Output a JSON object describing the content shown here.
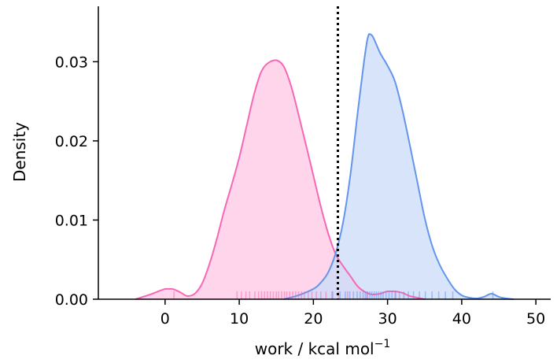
{
  "chart_data": {
    "type": "area",
    "title": "",
    "xlabel_main": "work / kcal mol",
    "xlabel_sup": "−1",
    "ylabel": "Density",
    "xlim": [
      -9,
      52
    ],
    "ylim": [
      0,
      0.037
    ],
    "xticks": [
      0,
      10,
      20,
      30,
      40,
      50
    ],
    "xtick_labels": [
      "0",
      "10",
      "20",
      "30",
      "40",
      "50"
    ],
    "yticks": [
      0.0,
      0.01,
      0.02,
      0.03
    ],
    "ytick_labels": [
      "0.00",
      "0.01",
      "0.02",
      "0.03"
    ],
    "grid": false,
    "vline": {
      "x": 23.3,
      "style": "dotted",
      "color": "#000000"
    },
    "series": [
      {
        "color": "#f768b4",
        "fill": "#ffc9e6",
        "x": [
          -4,
          -2,
          0,
          1,
          2,
          3,
          4,
          5,
          6,
          7,
          8,
          9,
          10,
          11,
          12,
          13,
          14,
          15,
          16,
          17,
          18,
          19,
          20,
          21,
          22,
          23,
          24,
          25,
          26,
          27,
          28,
          29,
          30,
          31,
          32,
          33,
          34,
          35
        ],
        "y": [
          0.0,
          0.0006,
          0.0013,
          0.0013,
          0.0009,
          0.0004,
          0.0007,
          0.002,
          0.0045,
          0.0077,
          0.0113,
          0.0145,
          0.0179,
          0.0219,
          0.0259,
          0.0288,
          0.0299,
          0.0302,
          0.0294,
          0.0269,
          0.0233,
          0.0195,
          0.0156,
          0.0117,
          0.0083,
          0.0057,
          0.0042,
          0.0029,
          0.0016,
          0.0009,
          0.0006,
          0.0007,
          0.001,
          0.001,
          0.0008,
          0.0004,
          0.0002,
          0.0
        ],
        "rug": [
          1.2,
          9.7,
          10.3,
          10.9,
          11.4,
          12.1,
          12.6,
          13.0,
          13.4,
          13.8,
          14.2,
          14.6,
          15.0,
          15.3,
          15.7,
          16.1,
          16.4,
          16.8,
          17.2,
          17.6,
          18.0,
          18.4,
          18.8,
          19.3,
          19.8,
          20.4,
          21.0,
          21.7,
          22.5,
          23.4,
          24.6,
          27.2,
          31.0
        ]
      },
      {
        "color": "#6495ed",
        "fill": "#cddcf7",
        "x": [
          16,
          18,
          20,
          21,
          22,
          23,
          24,
          25,
          26,
          27,
          27.5,
          28,
          29,
          30,
          31,
          32,
          33,
          34,
          35,
          36,
          37,
          38,
          39,
          40,
          41,
          42,
          43,
          44,
          45,
          46,
          47
        ],
        "y": [
          0.0,
          0.0005,
          0.0013,
          0.0021,
          0.0034,
          0.0058,
          0.0097,
          0.0158,
          0.0238,
          0.0312,
          0.0335,
          0.0332,
          0.0311,
          0.0295,
          0.0275,
          0.0239,
          0.0195,
          0.0149,
          0.0103,
          0.0068,
          0.0044,
          0.0027,
          0.0013,
          0.0005,
          0.0002,
          0.0001,
          0.0003,
          0.0007,
          0.0003,
          0.0001,
          0.0
        ],
        "rug": [
          22.6,
          23.6,
          24.3,
          24.9,
          25.4,
          25.9,
          26.3,
          26.7,
          27.0,
          27.3,
          27.6,
          27.9,
          28.2,
          28.5,
          28.8,
          29.1,
          29.4,
          29.8,
          30.2,
          30.6,
          31.1,
          31.6,
          32.2,
          32.8,
          33.5,
          34.3,
          35.1,
          36.0,
          36.9,
          37.8,
          38.8,
          44.2
        ]
      }
    ]
  }
}
